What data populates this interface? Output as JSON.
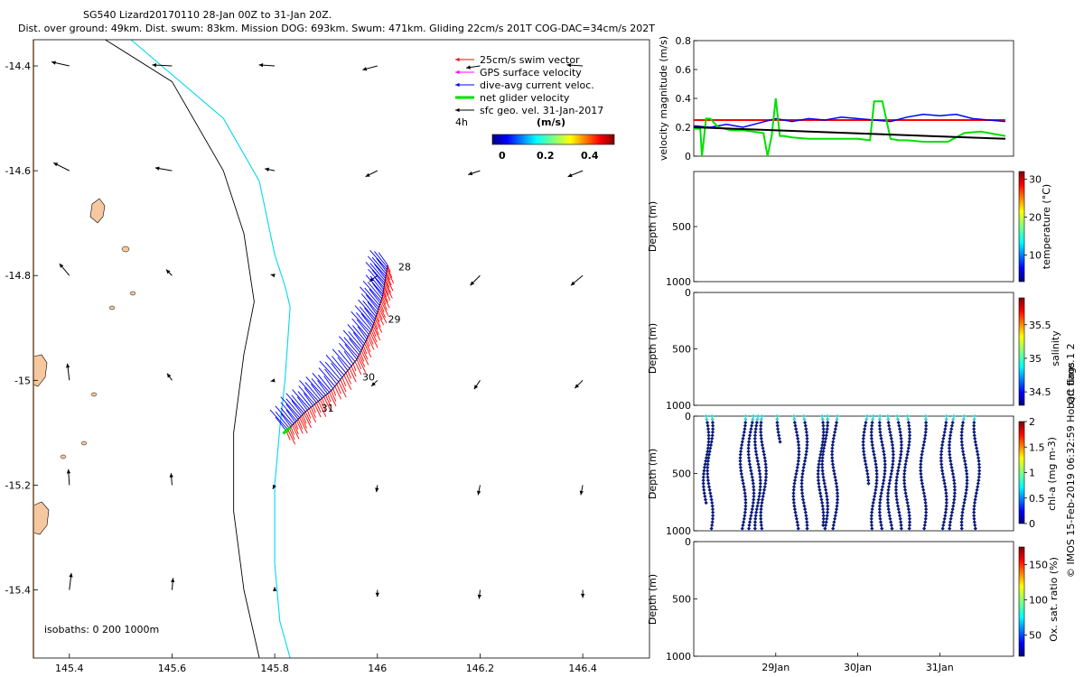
{
  "header": {
    "title_line1": "SG540 Lizard20170110 28-Jan 00Z to 31-Jan 20Z.",
    "title_line2": "Dist. over ground: 49km. Dist. swum: 83km. Mission DOG: 693km. Swum: 471km. Gliding 22cm/s 201T COG-DAC=34cm/s 202T"
  },
  "colors": {
    "swim": "#ff0000",
    "gps": "#ff00ff",
    "dac": "#0000ff",
    "net": "#00e000",
    "sfc": "#000000",
    "isobath_200": "#00d8f0",
    "isobath_1000": "#000000",
    "land": "#f5c8a0",
    "profile_marker": "#0a1a7a"
  },
  "chart_data": [
    {
      "id": "map",
      "type": "scatter",
      "xlim": [
        145.33,
        146.53
      ],
      "ylim": [
        -15.53,
        -14.35
      ],
      "xticks": [
        145.4,
        145.6,
        145.8,
        146,
        146.2,
        146.4
      ],
      "yticks": [
        -14.4,
        -14.6,
        -14.8,
        -15,
        -15.2,
        -15.4
      ],
      "xtick_labels": [
        "145.4",
        "145.6",
        "145.8",
        "146",
        "146.2",
        "146.4"
      ],
      "ytick_labels": [
        "-14.4",
        "-14.6",
        "-14.8",
        "-15",
        "-15.2",
        "-15.4"
      ],
      "legend": {
        "items": [
          {
            "label": "25cm/s swim vector",
            "color": "#ff0000",
            "style": "arrow"
          },
          {
            "label": "GPS surface velocity",
            "color": "#ff00ff",
            "style": "arrow"
          },
          {
            "label": "dive-avg current veloc.",
            "color": "#0000ff",
            "style": "arrow"
          },
          {
            "label": "net glider velocity",
            "color": "#00e000",
            "style": "thick-arrow"
          },
          {
            "label": "sfc geo. vel. 31-Jan-2017",
            "color": "#000000",
            "style": "arrow"
          }
        ],
        "time_step": "4h",
        "colorbar_unit": "(m/s)",
        "colorbar_ticks": [
          "0",
          "0.2",
          "0.4"
        ]
      },
      "day_labels": [
        {
          "text": "28",
          "lon": 146.03,
          "lat": -14.79
        },
        {
          "text": "29",
          "lon": 146.01,
          "lat": -14.89
        },
        {
          "text": "30",
          "lon": 145.96,
          "lat": -15.0
        },
        {
          "text": "31",
          "lon": 145.88,
          "lat": -15.06
        }
      ],
      "track": [
        [
          146.02,
          -14.78
        ],
        [
          146.01,
          -14.84
        ],
        [
          145.99,
          -14.9
        ],
        [
          145.96,
          -14.96
        ],
        [
          145.91,
          -15.02
        ],
        [
          145.86,
          -15.06
        ],
        [
          145.82,
          -15.1
        ]
      ],
      "isobath_200": [
        [
          145.52,
          -14.35
        ],
        [
          145.7,
          -14.5
        ],
        [
          145.77,
          -14.62
        ],
        [
          145.8,
          -14.76
        ],
        [
          145.82,
          -14.82
        ],
        [
          145.83,
          -14.86
        ],
        [
          145.82,
          -15.0
        ],
        [
          145.81,
          -15.09
        ],
        [
          145.8,
          -15.2
        ],
        [
          145.8,
          -15.35
        ],
        [
          145.81,
          -15.46
        ],
        [
          145.83,
          -15.53
        ]
      ],
      "isobath_1000": [
        [
          145.47,
          -14.35
        ],
        [
          145.6,
          -14.43
        ],
        [
          145.7,
          -14.6
        ],
        [
          145.74,
          -14.72
        ],
        [
          145.76,
          -14.85
        ],
        [
          145.74,
          -14.95
        ],
        [
          145.72,
          -15.1
        ],
        [
          145.72,
          -15.25
        ],
        [
          145.74,
          -15.4
        ],
        [
          145.77,
          -15.53
        ]
      ],
      "sfc_vectors": [
        {
          "lon": 145.4,
          "lat": -14.4,
          "u": -0.9,
          "v": 0.2
        },
        {
          "lon": 145.6,
          "lat": -14.4,
          "u": -1.0,
          "v": 0.05
        },
        {
          "lon": 145.8,
          "lat": -14.4,
          "u": -0.8,
          "v": 0.05
        },
        {
          "lon": 146.0,
          "lat": -14.4,
          "u": -0.75,
          "v": -0.2
        },
        {
          "lon": 146.2,
          "lat": -14.4,
          "u": -0.7,
          "v": -0.1
        },
        {
          "lon": 146.4,
          "lat": -14.4,
          "u": -0.8,
          "v": 0.05
        },
        {
          "lon": 145.4,
          "lat": -14.6,
          "u": -0.8,
          "v": 0.4
        },
        {
          "lon": 145.6,
          "lat": -14.6,
          "u": -0.85,
          "v": 0.15
        },
        {
          "lon": 145.8,
          "lat": -14.6,
          "u": -0.5,
          "v": 0.1
        },
        {
          "lon": 146.0,
          "lat": -14.6,
          "u": -0.6,
          "v": -0.3
        },
        {
          "lon": 146.2,
          "lat": -14.6,
          "u": -0.6,
          "v": -0.2
        },
        {
          "lon": 146.4,
          "lat": -14.6,
          "u": -0.75,
          "v": -0.3
        },
        {
          "lon": 145.4,
          "lat": -14.8,
          "u": -0.5,
          "v": 0.6
        },
        {
          "lon": 145.6,
          "lat": -14.8,
          "u": -0.3,
          "v": 0.3
        },
        {
          "lon": 145.8,
          "lat": -14.8,
          "u": -0.2,
          "v": 0.05
        },
        {
          "lon": 146.0,
          "lat": -14.8,
          "u": -0.4,
          "v": -0.3
        },
        {
          "lon": 146.2,
          "lat": -14.8,
          "u": -0.5,
          "v": -0.5
        },
        {
          "lon": 146.4,
          "lat": -14.8,
          "u": -0.6,
          "v": -0.5
        },
        {
          "lon": 145.4,
          "lat": -15.0,
          "u": -0.1,
          "v": 0.85
        },
        {
          "lon": 145.6,
          "lat": -15.0,
          "u": -0.25,
          "v": 0.35
        },
        {
          "lon": 145.8,
          "lat": -15.0,
          "u": -0.2,
          "v": -0.05
        },
        {
          "lon": 146.0,
          "lat": -15.0,
          "u": -0.3,
          "v": -0.3
        },
        {
          "lon": 146.2,
          "lat": -15.0,
          "u": -0.3,
          "v": -0.45
        },
        {
          "lon": 146.4,
          "lat": -15.0,
          "u": -0.4,
          "v": -0.4
        },
        {
          "lon": 145.4,
          "lat": -15.2,
          "u": -0.05,
          "v": 0.8
        },
        {
          "lon": 145.6,
          "lat": -15.2,
          "u": -0.05,
          "v": 0.6
        },
        {
          "lon": 145.8,
          "lat": -15.2,
          "u": -0.1,
          "v": -0.2
        },
        {
          "lon": 146.0,
          "lat": -15.2,
          "u": -0.05,
          "v": -0.35
        },
        {
          "lon": 146.2,
          "lat": -15.2,
          "u": -0.1,
          "v": -0.5
        },
        {
          "lon": 146.4,
          "lat": -15.2,
          "u": -0.1,
          "v": -0.5
        },
        {
          "lon": 145.4,
          "lat": -15.4,
          "u": 0.1,
          "v": 0.85
        },
        {
          "lon": 145.6,
          "lat": -15.4,
          "u": 0.05,
          "v": 0.6
        },
        {
          "lon": 145.8,
          "lat": -15.4,
          "u": 0.0,
          "v": 0.15
        },
        {
          "lon": 146.0,
          "lat": -15.4,
          "u": 0.0,
          "v": -0.35
        },
        {
          "lon": 146.2,
          "lat": -15.4,
          "u": -0.05,
          "v": -0.45
        },
        {
          "lon": 146.4,
          "lat": -15.4,
          "u": 0.0,
          "v": -0.4
        }
      ],
      "isobath_note": "isobaths: 0   200  1000m"
    },
    {
      "id": "velocity",
      "type": "line",
      "title": "",
      "xlabel": "",
      "ylabel": "velocity magnitude (m/s)",
      "xlim": [
        28.0,
        31.9
      ],
      "ylim": [
        0,
        0.8
      ],
      "yticks": [
        0,
        0.2,
        0.4,
        0.6,
        0.8
      ],
      "ytick_labels": [
        "0",
        "0.2",
        "0.4",
        "0.6",
        "0.8"
      ],
      "series": [
        {
          "name": "swim",
          "color": "#ff0000",
          "x": [
            28.0,
            31.8
          ],
          "y": [
            0.25,
            0.25
          ]
        },
        {
          "name": "dive-avg current",
          "color": "#0000ff",
          "x": [
            28.0,
            28.2,
            28.4,
            28.6,
            28.8,
            29.0,
            29.2,
            29.4,
            29.6,
            29.8,
            30.0,
            30.2,
            30.4,
            30.6,
            30.8,
            31.0,
            31.2,
            31.4,
            31.6,
            31.8
          ],
          "y": [
            0.21,
            0.2,
            0.22,
            0.2,
            0.23,
            0.26,
            0.24,
            0.26,
            0.25,
            0.27,
            0.26,
            0.25,
            0.24,
            0.27,
            0.29,
            0.28,
            0.29,
            0.26,
            0.25,
            0.24
          ]
        },
        {
          "name": "net glider",
          "color": "#00e000",
          "x": [
            28.0,
            28.08,
            28.1,
            28.15,
            28.2,
            28.3,
            28.45,
            28.6,
            28.85,
            28.9,
            28.95,
            29.0,
            29.05,
            29.1,
            29.2,
            29.4,
            29.6,
            29.8,
            30.0,
            30.15,
            30.2,
            30.3,
            30.35,
            30.4,
            30.5,
            30.6,
            30.8,
            31.0,
            31.1,
            31.3,
            31.5,
            31.8
          ],
          "y": [
            0.19,
            0.19,
            0.0,
            0.26,
            0.26,
            0.2,
            0.18,
            0.18,
            0.16,
            0.0,
            0.14,
            0.4,
            0.14,
            0.14,
            0.13,
            0.12,
            0.12,
            0.12,
            0.12,
            0.11,
            0.38,
            0.38,
            0.25,
            0.12,
            0.11,
            0.11,
            0.1,
            0.1,
            0.1,
            0.16,
            0.17,
            0.14
          ]
        },
        {
          "name": "sfc geo.",
          "color": "#000000",
          "x": [
            28.0,
            31.8
          ],
          "y": [
            0.2,
            0.12
          ]
        }
      ]
    },
    {
      "id": "temperature",
      "type": "heatmap",
      "ylabel": "Depth (m)",
      "ylim": [
        1000,
        0
      ],
      "yticks": [
        500,
        1000
      ],
      "ytick_labels": [
        "500",
        "1000"
      ],
      "colorbar_label": "temperature (°C)",
      "colorbar_ticks": [
        "10",
        "20",
        "30"
      ],
      "colorbar_range": [
        3,
        32
      ]
    },
    {
      "id": "salinity",
      "type": "heatmap",
      "ylabel": "Depth (m)",
      "ylim": [
        1000,
        0
      ],
      "yticks": [
        0,
        500,
        1000
      ],
      "ytick_labels": [
        "0",
        "500",
        "1000"
      ],
      "colorbar_label": "salinity",
      "colorbar_ticks": [
        "34.5",
        "35",
        "35.5"
      ],
      "colorbar_range": [
        34.3,
        35.9
      ],
      "colorbar_extra": "QC flags 1  2"
    },
    {
      "id": "chla",
      "type": "scatter",
      "ylabel": "Depth (m)",
      "ylim": [
        1000,
        0
      ],
      "yticks": [
        0,
        500,
        1000
      ],
      "ytick_labels": [
        "0",
        "500",
        "1000"
      ],
      "colorbar_label": "chl-a (mg m-3)",
      "colorbar_ticks": [
        "0",
        "0.5",
        "1",
        "1.5",
        "2"
      ],
      "colorbar_range": [
        0,
        2
      ],
      "profiles": [
        {
          "t": 28.15,
          "bottom": 780
        },
        {
          "t": 28.2,
          "bottom": 1000
        },
        {
          "t": 28.6,
          "bottom": 980
        },
        {
          "t": 28.7,
          "bottom": 1000
        },
        {
          "t": 28.78,
          "bottom": 980
        },
        {
          "t": 28.85,
          "bottom": 1000
        },
        {
          "t": 29.05,
          "bottom": 250
        },
        {
          "t": 29.25,
          "bottom": 1000
        },
        {
          "t": 29.35,
          "bottom": 980
        },
        {
          "t": 29.55,
          "bottom": 960
        },
        {
          "t": 29.6,
          "bottom": 1000
        },
        {
          "t": 29.72,
          "bottom": 1000
        },
        {
          "t": 30.1,
          "bottom": 600
        },
        {
          "t": 30.2,
          "bottom": 980
        },
        {
          "t": 30.3,
          "bottom": 1000
        },
        {
          "t": 30.4,
          "bottom": 980
        },
        {
          "t": 30.5,
          "bottom": 1000
        },
        {
          "t": 30.6,
          "bottom": 990
        },
        {
          "t": 30.8,
          "bottom": 1000
        },
        {
          "t": 31.05,
          "bottom": 990
        },
        {
          "t": 31.15,
          "bottom": 1000
        },
        {
          "t": 31.3,
          "bottom": 980
        },
        {
          "t": 31.45,
          "bottom": 1000
        }
      ]
    },
    {
      "id": "oxygen",
      "type": "heatmap",
      "ylabel": "Depth (m)",
      "ylim": [
        1000,
        0
      ],
      "yticks": [
        0,
        500,
        1000
      ],
      "ytick_labels": [
        "0",
        "500",
        "1000"
      ],
      "xlim": [
        28.0,
        31.9
      ],
      "xticks": [
        29,
        30,
        31
      ],
      "xtick_labels": [
        "29Jan",
        "30Jan",
        "31Jan"
      ],
      "colorbar_label": "Ox. sat. ratio (%)",
      "colorbar_ticks": [
        "50",
        "100",
        "150"
      ],
      "colorbar_range": [
        20,
        175
      ]
    }
  ],
  "watermark": "© IMOS 15-Feb-2019 06:32:59 Hobart time."
}
